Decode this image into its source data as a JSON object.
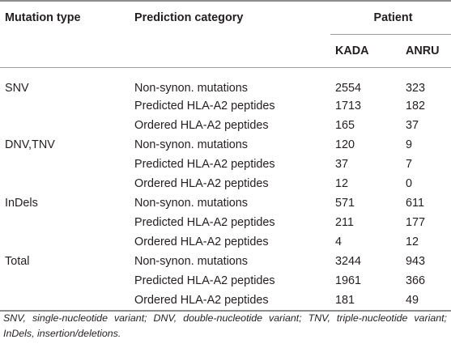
{
  "headers": {
    "mutation_type": "Mutation type",
    "prediction_category": "Prediction category",
    "patient": "Patient",
    "patients": [
      "KADA",
      "ANRU"
    ]
  },
  "groups": [
    {
      "type": "SNV",
      "rows": [
        {
          "category": "Non-synon. mutations",
          "kada": "2554",
          "anru": "323"
        },
        {
          "category": "Predicted HLA-A2 peptides",
          "kada": "1713",
          "anru": "182"
        },
        {
          "category": "Ordered HLA-A2 peptides",
          "kada": "165",
          "anru": "37"
        }
      ]
    },
    {
      "type": "DNV,TNV",
      "rows": [
        {
          "category": "Non-synon. mutations",
          "kada": "120",
          "anru": "9"
        },
        {
          "category": "Predicted HLA-A2 peptides",
          "kada": "37",
          "anru": "7"
        },
        {
          "category": "Ordered HLA-A2 peptides",
          "kada": "12",
          "anru": "0"
        }
      ]
    },
    {
      "type": "InDels",
      "rows": [
        {
          "category": "Non-synon. mutations",
          "kada": "571",
          "anru": "611"
        },
        {
          "category": "Predicted HLA-A2 peptides",
          "kada": "211",
          "anru": "177"
        },
        {
          "category": "Ordered HLA-A2 peptides",
          "kada": "4",
          "anru": "12"
        }
      ]
    },
    {
      "type": "Total",
      "rows": [
        {
          "category": "Non-synon. mutations",
          "kada": "3244",
          "anru": "943"
        },
        {
          "category": "Predicted HLA-A2 peptides",
          "kada": "1961",
          "anru": "366"
        },
        {
          "category": "Ordered HLA-A2 peptides",
          "kada": "181",
          "anru": "49"
        }
      ]
    }
  ],
  "footnote": "SNV, single-nucleotide variant; DNV, double-nucleotide variant; TNV, triple-nucleotide variant; InDels, insertion/deletions."
}
